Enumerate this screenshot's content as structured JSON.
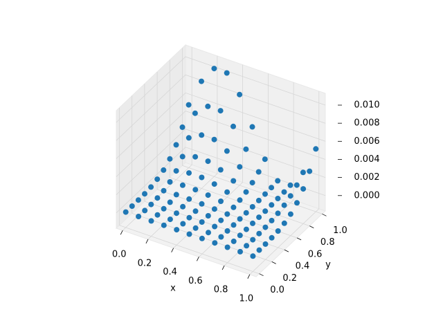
{
  "chart_data": {
    "type": "scatter3d",
    "color": "#1f77b4",
    "xlabel": "x",
    "ylabel": "y",
    "xlim": [
      -0.05,
      1.05
    ],
    "ylim": [
      -0.05,
      1.05
    ],
    "zlim": [
      -0.0017,
      0.0113
    ],
    "xticks": [
      {
        "value": 0,
        "label": "0.0"
      },
      0.2,
      0.4,
      0.6,
      0.8,
      {
        "value": 1,
        "label": "1.0"
      }
    ],
    "yticks": [
      {
        "value": 0,
        "label": "0.0"
      },
      0.2,
      0.4,
      0.6,
      0.8,
      {
        "value": 1,
        "label": "1.0"
      }
    ],
    "zticks": [
      {
        "value": 0,
        "label": "0.000"
      },
      {
        "value": 0.002,
        "label": "0.002"
      },
      {
        "value": 0.004,
        "label": "0.004"
      },
      {
        "value": 0.006,
        "label": "0.006"
      },
      {
        "value": 0.008,
        "label": "0.008"
      },
      {
        "value": 0.01,
        "label": "0.010"
      }
    ],
    "x": [
      0,
      0.1,
      0.2,
      0.3,
      0.4,
      0.5,
      0.6,
      0.7,
      0.8,
      0.9,
      1,
      0,
      0.1,
      0.2,
      0.3,
      0.4,
      0.5,
      0.6,
      0.7,
      0.8,
      0.9,
      1,
      0,
      0.1,
      0.2,
      0.3,
      0.4,
      0.5,
      0.6,
      0.7,
      0.8,
      0.9,
      1,
      0,
      0.1,
      0.2,
      0.3,
      0.4,
      0.5,
      0.6,
      0.7,
      0.8,
      0.9,
      1,
      0,
      0.1,
      0.2,
      0.3,
      0.4,
      0.5,
      0.6,
      0.7,
      0.8,
      0.9,
      1,
      0,
      0.1,
      0.2,
      0.3,
      0.4,
      0.5,
      0.6,
      0.7,
      0.8,
      0.9,
      1,
      0,
      0.1,
      0.2,
      0.3,
      0.4,
      0.5,
      0.6,
      0.7,
      0.8,
      0.9,
      1,
      0,
      0.1,
      0.2,
      0.3,
      0.4,
      0.5,
      0.6,
      0.7,
      0.8,
      0.9,
      1,
      0,
      0.1,
      0.2,
      0.3,
      0.4,
      0.5,
      0.6,
      0.7,
      0.8,
      0.9,
      1,
      0,
      0.1,
      0.2,
      0.3,
      0.4,
      0.5,
      0.6,
      0.7,
      0.8,
      0.9,
      1,
      0,
      0.1,
      0.2,
      0.3,
      0.4,
      0.5,
      0.6,
      0.7,
      0.8,
      0.9,
      1
    ],
    "y": [
      0,
      0,
      0,
      0,
      0,
      0,
      0,
      0,
      0,
      0,
      0,
      0.1,
      0.1,
      0.1,
      0.1,
      0.1,
      0.1,
      0.1,
      0.1,
      0.1,
      0.1,
      0.1,
      0.2,
      0.2,
      0.2,
      0.2,
      0.2,
      0.2,
      0.2,
      0.2,
      0.2,
      0.2,
      0.2,
      0.3,
      0.3,
      0.3,
      0.3,
      0.3,
      0.3,
      0.3,
      0.3,
      0.3,
      0.3,
      0.3,
      0.4,
      0.4,
      0.4,
      0.4,
      0.4,
      0.4,
      0.4,
      0.4,
      0.4,
      0.4,
      0.4,
      0.5,
      0.5,
      0.5,
      0.5,
      0.5,
      0.5,
      0.5,
      0.5,
      0.5,
      0.5,
      0.5,
      0.6,
      0.6,
      0.6,
      0.6,
      0.6,
      0.6,
      0.6,
      0.6,
      0.6,
      0.6,
      0.6,
      0.7,
      0.7,
      0.7,
      0.7,
      0.7,
      0.7,
      0.7,
      0.7,
      0.7,
      0.7,
      0.7,
      0.8,
      0.8,
      0.8,
      0.8,
      0.8,
      0.8,
      0.8,
      0.8,
      0.8,
      0.8,
      0.8,
      0.9,
      0.9,
      0.9,
      0.9,
      0.9,
      0.9,
      0.9,
      0.9,
      0.9,
      0.9,
      0.9,
      1,
      1,
      1,
      1,
      1,
      1,
      1,
      1,
      1,
      1,
      1
    ],
    "z": [
      0,
      0,
      0,
      0,
      0,
      0,
      0,
      0,
      0,
      0,
      0,
      0,
      0,
      0,
      0,
      0,
      0,
      0,
      0,
      0,
      0,
      0,
      1e-05,
      1e-05,
      2e-05,
      2e-05,
      1e-05,
      1e-05,
      0,
      0,
      0,
      0,
      1e-05,
      4e-05,
      7e-05,
      8e-05,
      8e-05,
      7e-05,
      4e-05,
      2e-05,
      0,
      0,
      2e-05,
      4e-05,
      0.00013,
      0.00021,
      0.00026,
      0.00026,
      0.00021,
      0.00013,
      6e-05,
      1e-05,
      1e-05,
      6e-05,
      0.00013,
      0.00033,
      0.00052,
      0.00064,
      0.00064,
      0.00052,
      0.00033,
      0.00014,
      2e-05,
      2e-05,
      0.00014,
      0.00033,
      0.00068,
      0.00108,
      0.00133,
      0.00133,
      0.00108,
      0.00068,
      0.00028,
      3e-05,
      3e-05,
      0.00028,
      0.00068,
      0.00126,
      0.002,
      0.00246,
      0.00246,
      0.002,
      0.00126,
      0.00052,
      6e-05,
      6e-05,
      0.00052,
      0.00126,
      0.00215,
      0.00341,
      0.0042,
      0.0042,
      0.00341,
      0.00215,
      0.00089,
      0.00011,
      0.00011,
      0.00089,
      0.00215,
      0.00344,
      0.00547,
      0.00672,
      0.00672,
      0.00547,
      0.00344,
      0.00142,
      0.00017,
      0.00017,
      0.00142,
      0.00344,
      0.00525,
      0.00834,
      0.01024,
      0.01024,
      0.00834,
      0.00525,
      0.00216,
      0.00026,
      0.00026,
      0.00216,
      0.00525
    ]
  }
}
